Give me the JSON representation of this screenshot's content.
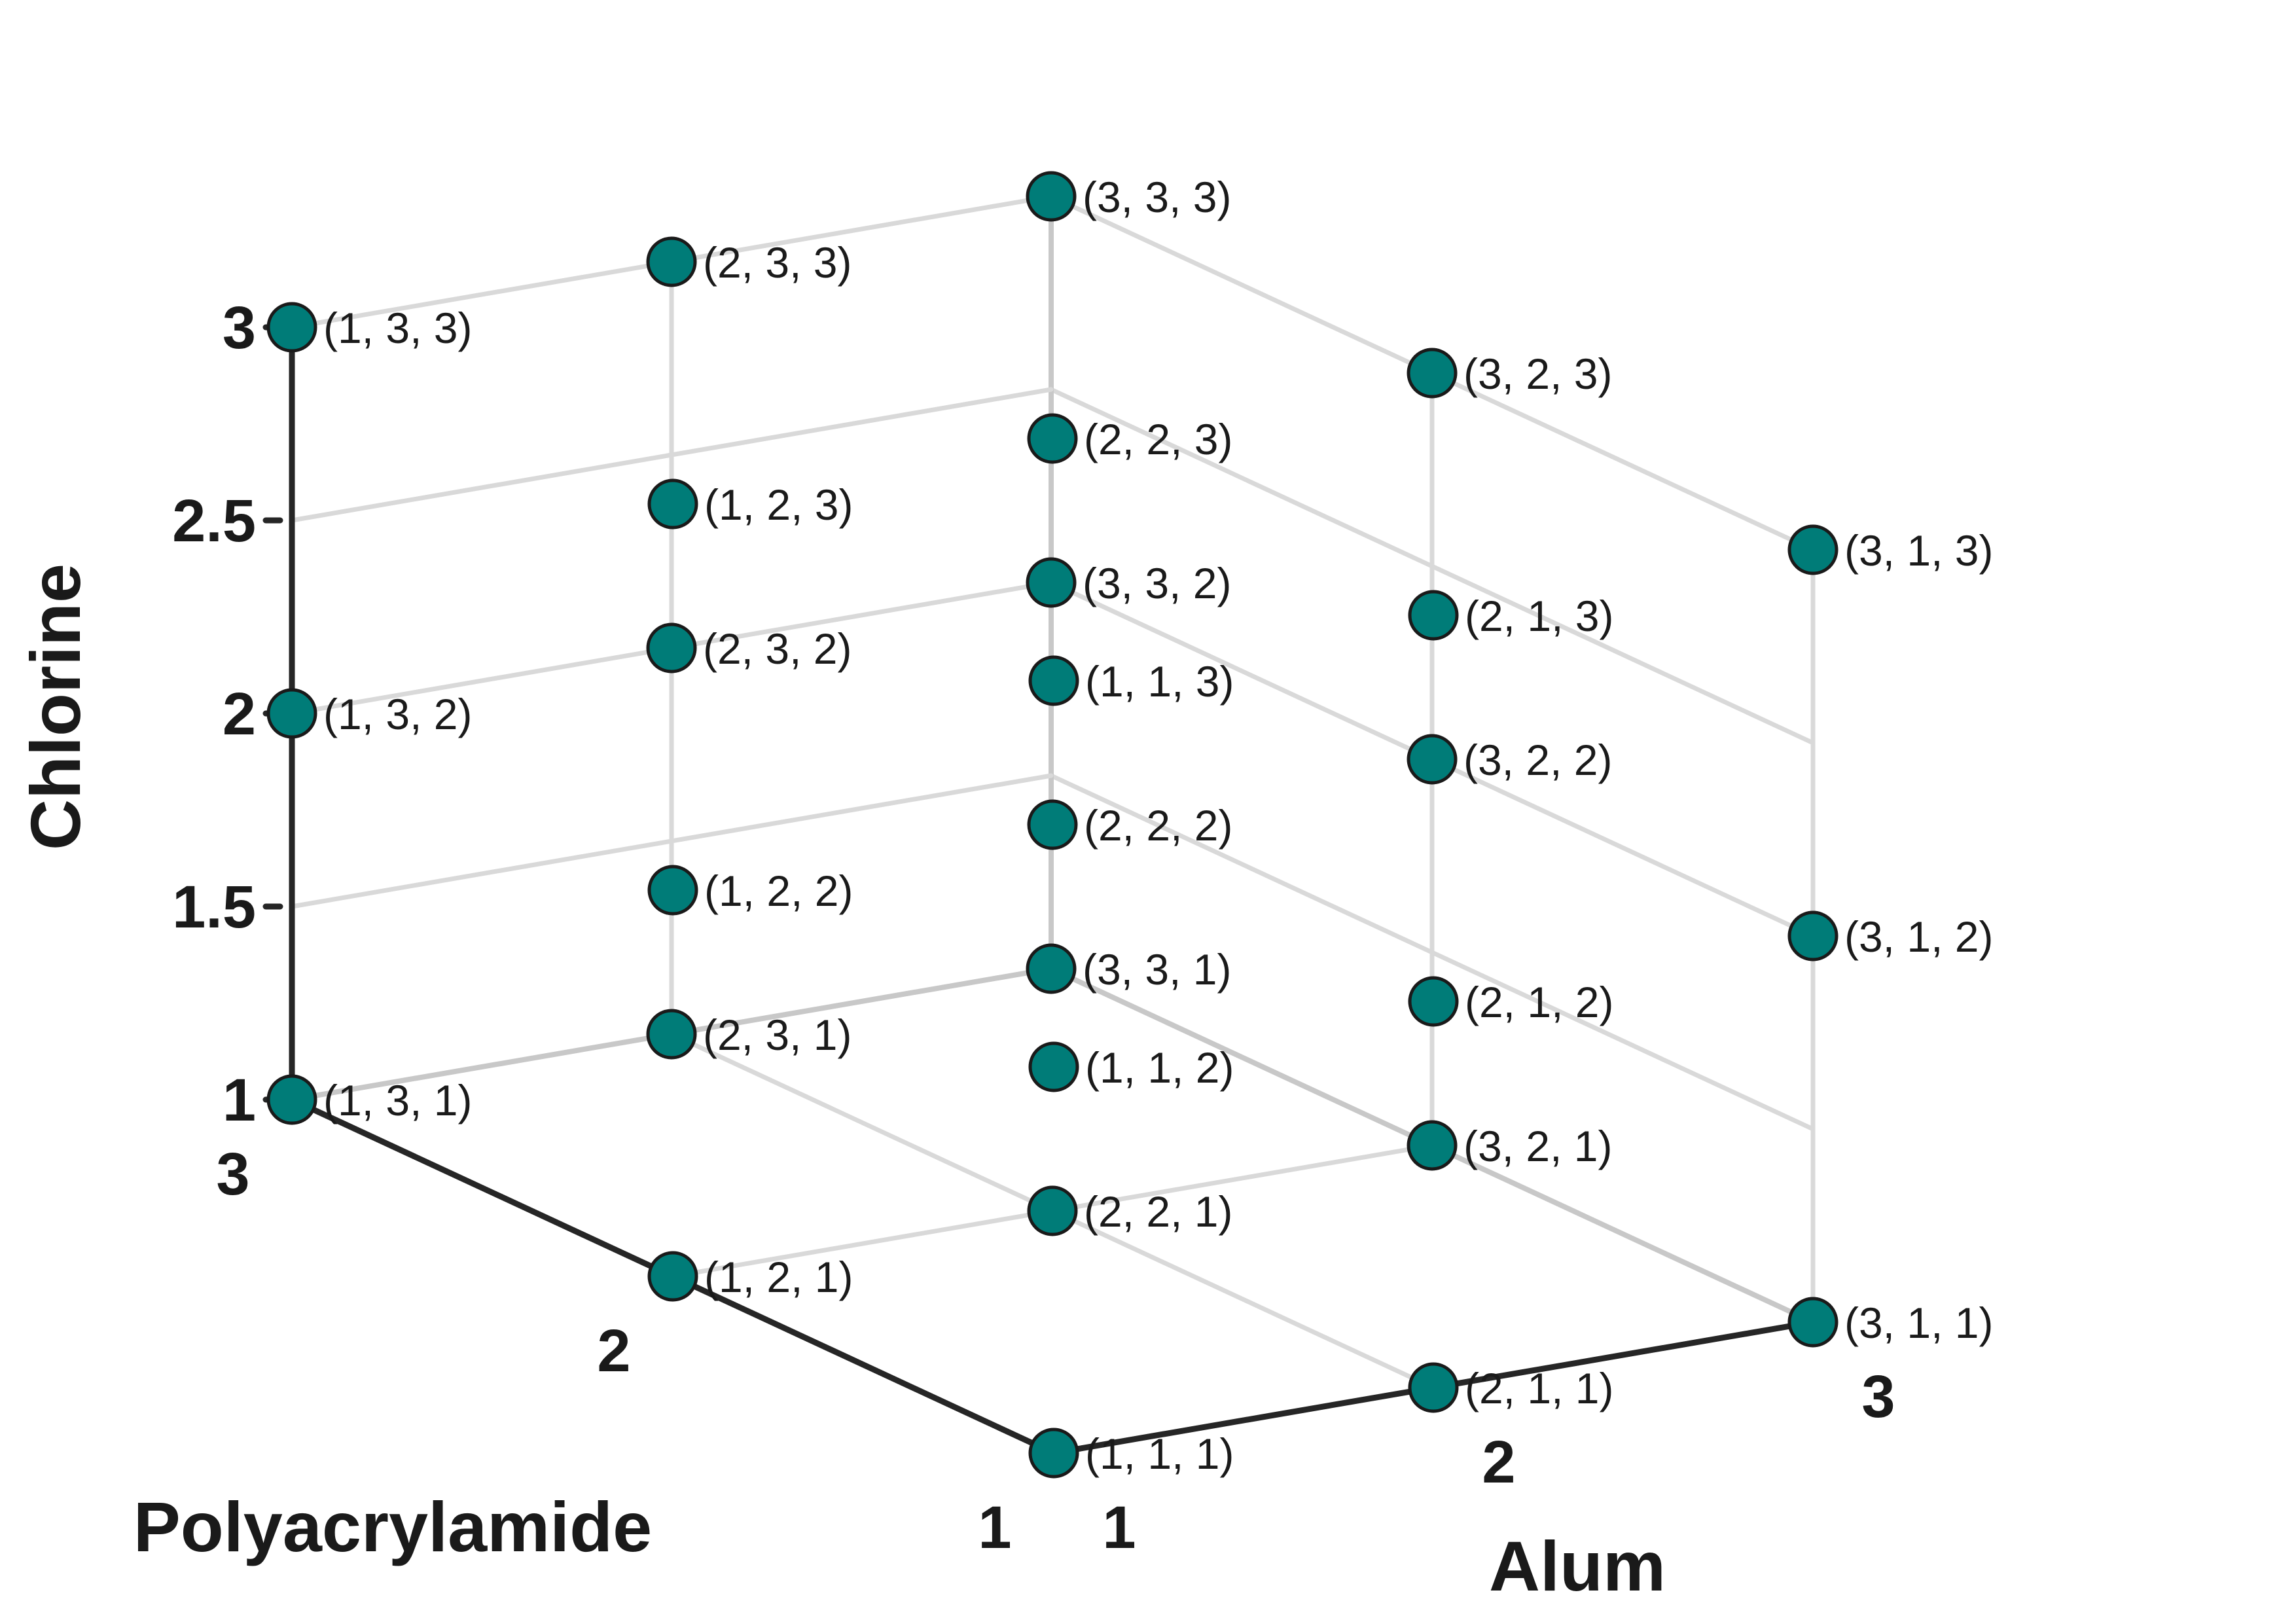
{
  "chart_data": {
    "type": "scatter",
    "subtype": "3d-scatter",
    "title": "",
    "axes": {
      "x": {
        "label": "Alum",
        "ticks": [
          "1",
          "2",
          "3"
        ],
        "range": [
          1,
          3
        ]
      },
      "y": {
        "label": "Polyacrylamide",
        "ticks": [
          "1",
          "2",
          "3"
        ],
        "range": [
          1,
          3
        ]
      },
      "z": {
        "label": "Chlorine",
        "ticks": [
          "1",
          "1.5",
          "2",
          "2.5",
          "3"
        ],
        "range": [
          1,
          3
        ]
      }
    },
    "grid": true,
    "marker_color": "#007c78",
    "marker_edge_color": "#1a1a1a",
    "grid_color": "#d9d9d9",
    "axis_color": "#262626",
    "points": [
      {
        "x": 1,
        "y": 1,
        "z": 1,
        "label": "(1, 1, 1)"
      },
      {
        "x": 1,
        "y": 1,
        "z": 2,
        "label": "(1, 1, 2)"
      },
      {
        "x": 1,
        "y": 1,
        "z": 3,
        "label": "(1, 1, 3)"
      },
      {
        "x": 1,
        "y": 2,
        "z": 1,
        "label": "(1, 2, 1)"
      },
      {
        "x": 1,
        "y": 2,
        "z": 2,
        "label": "(1, 2, 2)"
      },
      {
        "x": 1,
        "y": 2,
        "z": 3,
        "label": "(1, 2, 3)"
      },
      {
        "x": 1,
        "y": 3,
        "z": 1,
        "label": "(1, 3, 1)"
      },
      {
        "x": 1,
        "y": 3,
        "z": 2,
        "label": "(1, 3, 2)"
      },
      {
        "x": 1,
        "y": 3,
        "z": 3,
        "label": "(1, 3, 3)"
      },
      {
        "x": 2,
        "y": 1,
        "z": 1,
        "label": "(2, 1, 1)"
      },
      {
        "x": 2,
        "y": 1,
        "z": 2,
        "label": "(2, 1, 2)"
      },
      {
        "x": 2,
        "y": 1,
        "z": 3,
        "label": "(2, 1, 3)"
      },
      {
        "x": 2,
        "y": 2,
        "z": 1,
        "label": "(2, 2, 1)"
      },
      {
        "x": 2,
        "y": 2,
        "z": 2,
        "label": "(2, 2, 2)"
      },
      {
        "x": 2,
        "y": 2,
        "z": 3,
        "label": "(2, 2, 3)"
      },
      {
        "x": 2,
        "y": 3,
        "z": 1,
        "label": "(2, 3, 1)"
      },
      {
        "x": 2,
        "y": 3,
        "z": 2,
        "label": "(2, 3, 2)"
      },
      {
        "x": 2,
        "y": 3,
        "z": 3,
        "label": "(2, 3, 3)"
      },
      {
        "x": 3,
        "y": 1,
        "z": 1,
        "label": "(3, 1, 1)"
      },
      {
        "x": 3,
        "y": 1,
        "z": 2,
        "label": "(3, 1, 2)"
      },
      {
        "x": 3,
        "y": 1,
        "z": 3,
        "label": "(3, 1, 3)"
      },
      {
        "x": 3,
        "y": 2,
        "z": 1,
        "label": "(3, 2, 1)"
      },
      {
        "x": 3,
        "y": 2,
        "z": 2,
        "label": "(3, 2, 2)"
      },
      {
        "x": 3,
        "y": 2,
        "z": 3,
        "label": "(3, 2, 3)"
      },
      {
        "x": 3,
        "y": 3,
        "z": 1,
        "label": "(3, 3, 1)"
      },
      {
        "x": 3,
        "y": 3,
        "z": 2,
        "label": "(3, 3, 2)"
      },
      {
        "x": 3,
        "y": 3,
        "z": 3,
        "label": "(3, 3, 3)"
      }
    ]
  }
}
